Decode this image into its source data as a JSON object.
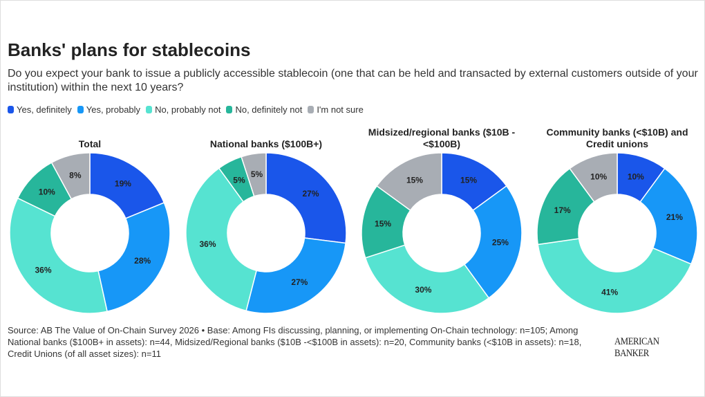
{
  "title": "Banks' plans for stablecoins",
  "subtitle": "Do you expect your bank to issue a publicly accessible stablecoin (one that can be held and transacted by external customers outside of your institution) within the next 10 years?",
  "legend": [
    {
      "label": "Yes, definitely",
      "color": "#1a56ea"
    },
    {
      "label": "Yes, probably",
      "color": "#1797f7"
    },
    {
      "label": "No, probably not",
      "color": "#56e3d1"
    },
    {
      "label": "No, definitely not",
      "color": "#27b69b"
    },
    {
      "label": "I'm not sure",
      "color": "#a8adb4"
    }
  ],
  "chart_data": [
    {
      "type": "pie",
      "donut": true,
      "title": "Total",
      "categories": [
        "Yes, definitely",
        "Yes, probably",
        "No, probably not",
        "No, definitely not",
        "I'm not sure"
      ],
      "values": [
        19,
        28,
        36,
        10,
        8
      ],
      "labels": [
        "19%",
        "28%",
        "36%",
        "10%",
        "8%"
      ]
    },
    {
      "type": "pie",
      "donut": true,
      "title": "National banks ($100B+)",
      "categories": [
        "Yes, definitely",
        "Yes, probably",
        "No, probably not",
        "No, definitely not",
        "I'm not sure"
      ],
      "values": [
        27,
        27,
        36,
        5,
        5
      ],
      "labels": [
        "27%",
        "27%",
        "36%",
        "5%",
        "5%"
      ]
    },
    {
      "type": "pie",
      "donut": true,
      "title": "Midsized/regional banks ($10B -<$100B)",
      "categories": [
        "Yes, definitely",
        "Yes, probably",
        "No, probably not",
        "No, definitely not",
        "I'm not sure"
      ],
      "values": [
        15,
        25,
        30,
        15,
        15
      ],
      "labels": [
        "15%",
        "25%",
        "30%",
        "15%",
        "15%"
      ]
    },
    {
      "type": "pie",
      "donut": true,
      "title": "Community banks (<$10B) and Credit unions",
      "categories": [
        "Yes, definitely",
        "Yes, probably",
        "No, probably not",
        "No, definitely not",
        "I'm not sure"
      ],
      "values": [
        10,
        21,
        41,
        17,
        10
      ],
      "labels": [
        "10%",
        "21%",
        "41%",
        "17%",
        "10%"
      ]
    }
  ],
  "footer": "Source: AB The Value of On-Chain Survey 2026 • Base: Among FIs discussing, planning, or implementing On-Chain technology: n=105; Among National banks ($100B+ in assets): n=44, Midsized/Regional banks ($10B -<$100B in assets): n=20, Community banks (<$10B in assets): n=18, Credit Unions (of all asset sizes): n=11",
  "logo": "AMERICAN BANKER"
}
